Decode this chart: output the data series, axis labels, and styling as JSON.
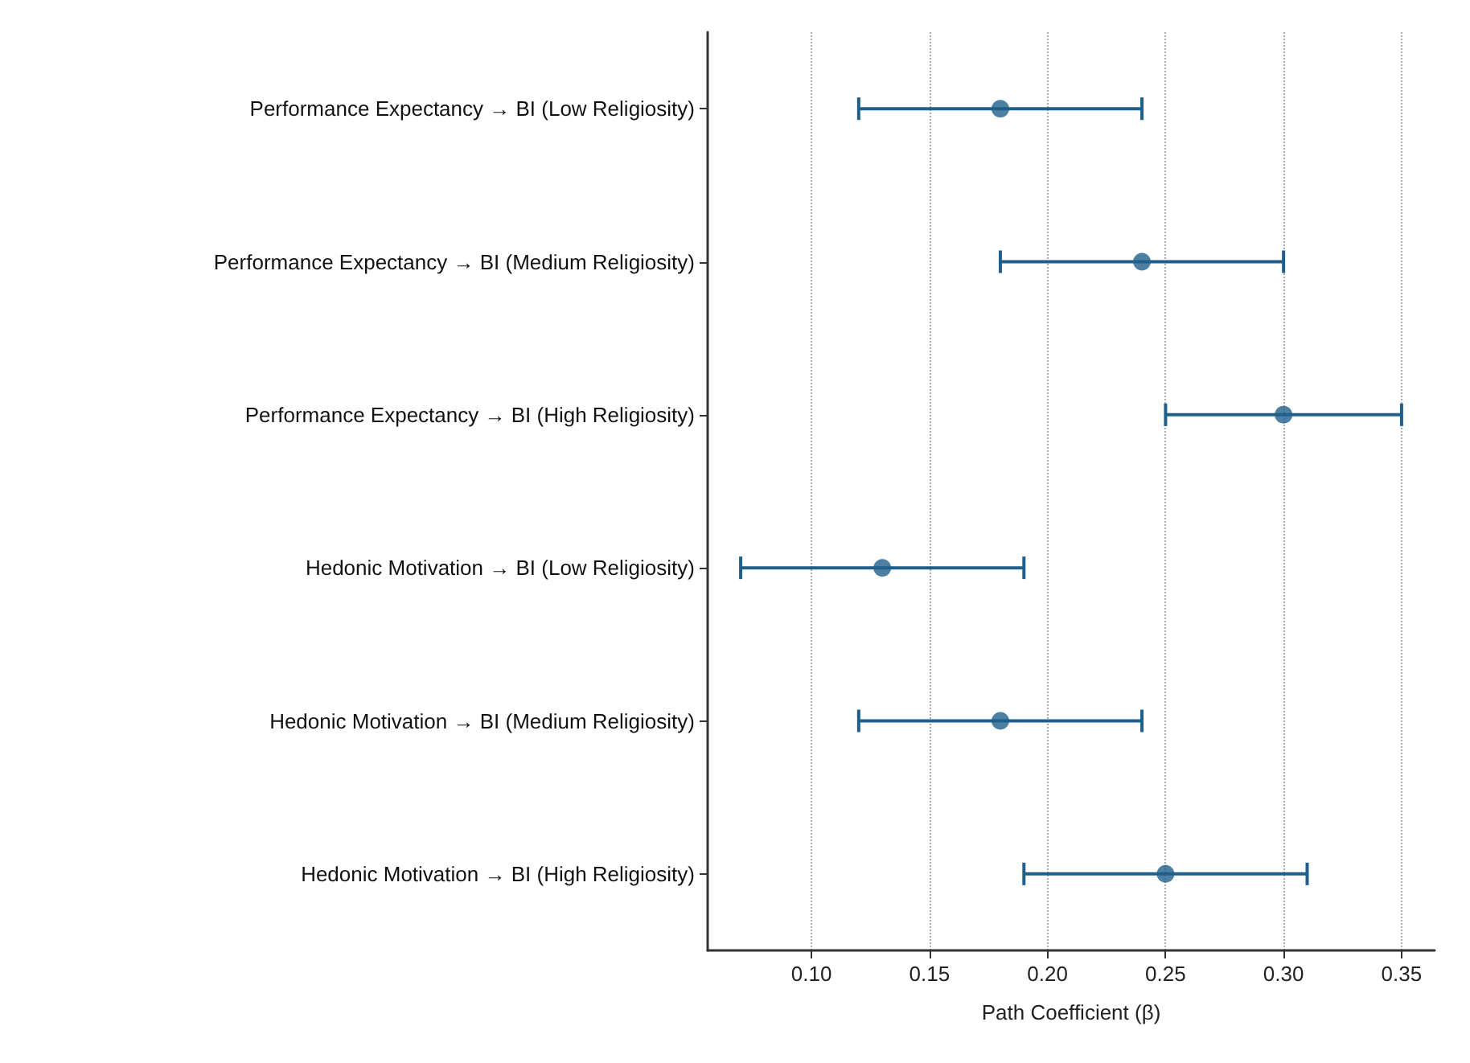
{
  "chart_data": {
    "type": "scatter",
    "orientation": "horizontal",
    "xlabel": "Path Coefficient (β)",
    "categories": [
      "Performance Expectancy → BI (Low Religiosity)",
      "Performance Expectancy → BI (Medium Religiosity)",
      "Performance Expectancy → BI (High Religiosity)",
      "Hedonic Motivation → BI (Low Religiosity)",
      "Hedonic Motivation → BI (Medium Religiosity)",
      "Hedonic Motivation → BI (High Religiosity)"
    ],
    "values": [
      0.18,
      0.24,
      0.3,
      0.13,
      0.18,
      0.25
    ],
    "errors": [
      0.06,
      0.06,
      0.05,
      0.06,
      0.06,
      0.06
    ],
    "color": "#1f5f8b",
    "marker": "circle",
    "grid": "x",
    "xlim": [
      0.056,
      0.364
    ],
    "xticks": [
      {
        "value": 0.1,
        "label": "0.10"
      },
      {
        "value": 0.15,
        "label": "0.15"
      },
      {
        "value": 0.2,
        "label": "0.20"
      },
      {
        "value": 0.25,
        "label": "0.25"
      },
      {
        "value": 0.3,
        "label": "0.30"
      },
      {
        "value": 0.35,
        "label": "0.35"
      }
    ]
  }
}
